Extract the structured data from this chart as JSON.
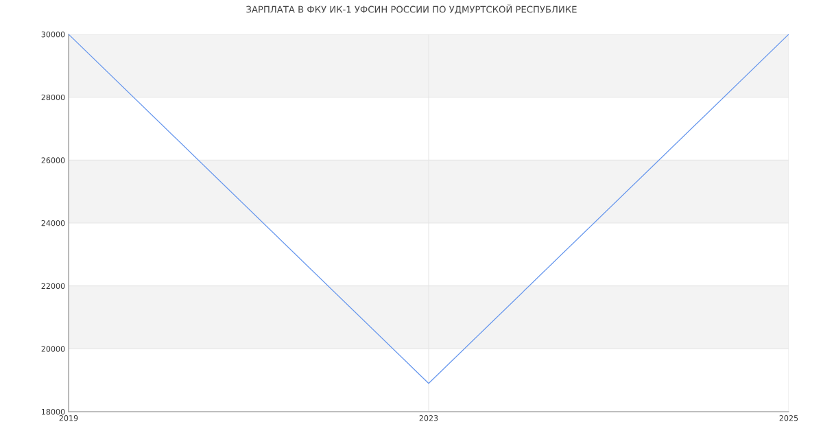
{
  "chart_data": {
    "type": "line",
    "title": "ЗАРПЛАТА В ФКУ ИК-1 УФСИН РОССИИ ПО УДМУРТСКОЙ РЕСПУБЛИКЕ",
    "categories": [
      "2019",
      "2023",
      "2025"
    ],
    "series": [
      {
        "color": "#6495ed",
        "values": [
          30000,
          18900,
          30000
        ]
      }
    ],
    "ylim": [
      18000,
      30000
    ],
    "yticks": [
      18000,
      20000,
      22000,
      24000,
      26000,
      28000,
      30000
    ],
    "bands": [
      {
        "axis": "y",
        "from": 20000,
        "to": 22000,
        "color": "#f3f3f3"
      },
      {
        "axis": "y",
        "from": 24000,
        "to": 26000,
        "color": "#f3f3f3"
      },
      {
        "axis": "y",
        "from": 28000,
        "to": 30000,
        "color": "#f3f3f3"
      }
    ],
    "grid": true,
    "marker": "none",
    "line_style": "solid"
  }
}
